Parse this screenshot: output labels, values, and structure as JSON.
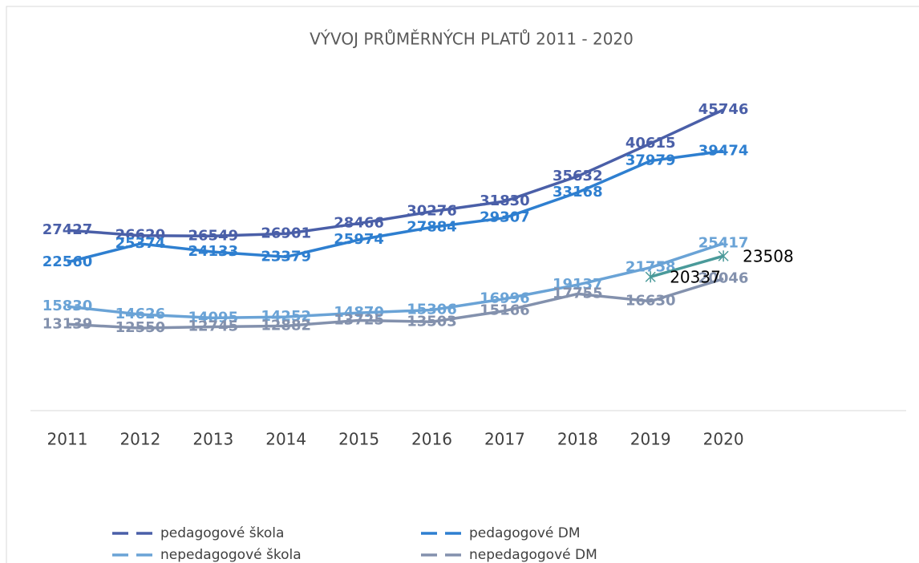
{
  "chart_data": {
    "type": "line",
    "title": "VÝVOJ PRŮMĚRNÝCH PLATŮ 2011 - 2020",
    "categories": [
      "2011",
      "2012",
      "2013",
      "2014",
      "2015",
      "2016",
      "2017",
      "2018",
      "2019",
      "2020"
    ],
    "series": [
      {
        "name": "pedagogové škola",
        "color": "#4a5fa8",
        "values": [
          27427,
          26620,
          26549,
          26901,
          28466,
          30276,
          31830,
          35632,
          40615,
          45746
        ]
      },
      {
        "name": "pedagogové DM",
        "color": "#2e7fd0",
        "values": [
          22560,
          25374,
          24133,
          23379,
          25974,
          27884,
          29307,
          33168,
          37979,
          39474
        ]
      },
      {
        "name": "nepedagogové škola",
        "color": "#6aa3d6",
        "values": [
          15830,
          14626,
          14095,
          14252,
          14870,
          15306,
          16996,
          19137,
          21758,
          25417
        ]
      },
      {
        "name": "nepedagogové DM",
        "color": "#8391ad",
        "values": [
          13139,
          12550,
          12745,
          12882,
          13725,
          13503,
          15166,
          17755,
          16630,
          20046
        ]
      },
      {
        "color": "#4a9a9a",
        "values": [
          null,
          null,
          null,
          null,
          null,
          null,
          null,
          null,
          20337,
          23508
        ]
      }
    ],
    "ylim": [
      0,
      50000
    ],
    "grid": false,
    "legend": "bottom"
  }
}
